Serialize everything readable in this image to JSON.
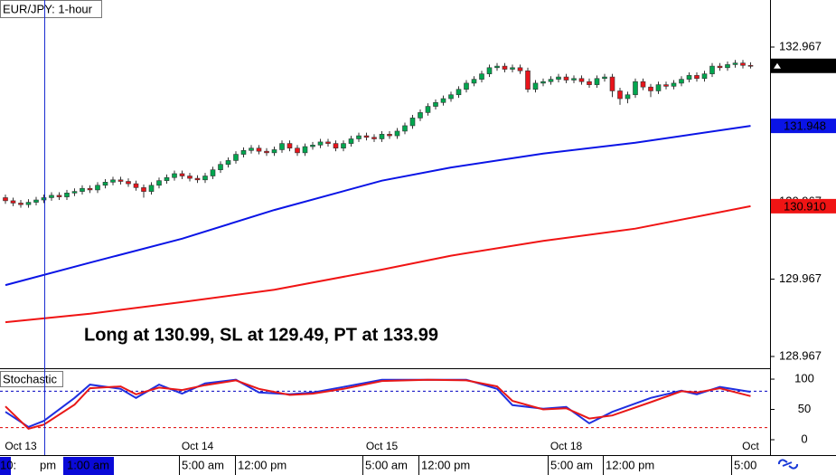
{
  "chart_data": [
    {
      "type": "candlestick",
      "title": "EUR/JPY: 1-hour",
      "annotation": "Long at 130.99, SL at 129.49, PT at 133.99",
      "categories": [
        null,
        null,
        "Oct 13",
        null,
        null,
        null,
        null,
        null,
        null,
        null,
        null,
        null,
        null,
        null,
        null,
        null,
        null,
        null,
        null,
        null,
        null,
        null,
        null,
        null,
        null,
        "Oct 14",
        null,
        null,
        null,
        null,
        null,
        null,
        null,
        null,
        null,
        null,
        null,
        null,
        null,
        null,
        null,
        null,
        null,
        null,
        null,
        null,
        null,
        null,
        null,
        "Oct 15",
        null,
        null,
        null,
        null,
        null,
        null,
        null,
        null,
        null,
        null,
        null,
        null,
        null,
        null,
        null,
        null,
        null,
        null,
        null,
        null,
        null,
        null,
        null,
        "Oct 18",
        null,
        null,
        null,
        null,
        null,
        null,
        null,
        null,
        null,
        null,
        null,
        null,
        null,
        null,
        null,
        null,
        null,
        null,
        null,
        null,
        null,
        null,
        null,
        "Oct"
      ],
      "open": [
        131.02,
        130.98,
        130.95,
        130.93,
        130.96,
        130.99,
        131.02,
        131.05,
        131.03,
        131.08,
        131.1,
        131.14,
        131.12,
        131.18,
        131.22,
        131.25,
        131.23,
        131.2,
        131.15,
        131.1,
        131.18,
        131.24,
        131.28,
        131.33,
        131.3,
        131.27,
        131.25,
        131.3,
        131.38,
        131.45,
        131.5,
        131.58,
        131.63,
        131.66,
        131.62,
        131.6,
        131.64,
        131.72,
        131.66,
        131.6,
        131.68,
        131.7,
        131.74,
        131.72,
        131.66,
        131.72,
        131.78,
        131.82,
        131.8,
        131.78,
        131.84,
        131.82,
        131.88,
        131.95,
        132.05,
        132.12,
        132.2,
        132.25,
        132.3,
        132.35,
        132.42,
        132.5,
        132.55,
        132.62,
        132.7,
        132.72,
        132.68,
        132.7,
        132.66,
        132.42,
        132.5,
        132.52,
        132.55,
        132.58,
        132.54,
        132.56,
        132.52,
        132.48,
        132.56,
        132.58,
        132.4,
        132.3,
        132.35,
        132.52,
        132.45,
        132.4,
        132.48,
        132.46,
        132.5,
        132.55,
        132.6,
        132.56,
        132.62,
        132.72,
        132.7,
        132.74,
        132.76,
        132.73
      ],
      "high": [
        131.06,
        131.02,
        130.99,
        131.0,
        131.03,
        131.06,
        131.09,
        131.09,
        131.12,
        131.14,
        131.18,
        131.18,
        131.22,
        131.26,
        131.29,
        131.29,
        131.27,
        131.24,
        131.19,
        131.22,
        131.28,
        131.32,
        131.37,
        131.37,
        131.34,
        131.31,
        131.34,
        131.42,
        131.49,
        131.54,
        131.62,
        131.67,
        131.7,
        131.7,
        131.66,
        131.68,
        131.76,
        131.76,
        131.7,
        131.72,
        131.74,
        131.78,
        131.78,
        131.76,
        131.76,
        131.82,
        131.86,
        131.86,
        131.84,
        131.88,
        131.88,
        131.92,
        131.99,
        132.09,
        132.16,
        132.24,
        132.29,
        132.34,
        132.39,
        132.46,
        132.54,
        132.59,
        132.66,
        132.74,
        132.76,
        132.76,
        132.74,
        132.74,
        132.7,
        132.54,
        132.56,
        132.59,
        132.62,
        132.62,
        132.6,
        132.6,
        132.56,
        132.6,
        132.62,
        132.62,
        132.44,
        132.39,
        132.56,
        132.56,
        132.49,
        132.52,
        132.52,
        132.54,
        132.59,
        132.64,
        132.64,
        132.66,
        132.76,
        132.76,
        132.78,
        132.8,
        132.8,
        132.77
      ],
      "low": [
        130.94,
        130.91,
        130.89,
        130.89,
        130.92,
        130.95,
        130.98,
        130.99,
        130.99,
        131.04,
        131.06,
        131.08,
        131.08,
        131.14,
        131.18,
        131.19,
        131.16,
        131.11,
        131.02,
        131.06,
        131.14,
        131.2,
        131.24,
        131.26,
        131.23,
        131.21,
        131.21,
        131.26,
        131.34,
        131.41,
        131.46,
        131.54,
        131.59,
        131.58,
        131.56,
        131.56,
        131.6,
        131.62,
        131.56,
        131.56,
        131.64,
        131.66,
        131.68,
        131.62,
        131.62,
        131.68,
        131.74,
        131.76,
        131.74,
        131.74,
        131.78,
        131.78,
        131.84,
        131.91,
        132.01,
        132.08,
        132.16,
        132.21,
        132.26,
        132.31,
        132.38,
        132.46,
        132.51,
        132.58,
        132.66,
        132.64,
        132.64,
        132.62,
        132.38,
        132.38,
        132.46,
        132.48,
        132.51,
        132.5,
        132.5,
        132.48,
        132.44,
        132.44,
        132.52,
        132.32,
        132.22,
        132.24,
        132.31,
        132.41,
        132.32,
        132.36,
        132.42,
        132.42,
        132.46,
        132.51,
        132.52,
        132.52,
        132.58,
        132.66,
        132.66,
        132.7,
        132.69,
        132.69
      ],
      "close": [
        130.98,
        130.95,
        130.93,
        130.96,
        130.99,
        131.02,
        131.05,
        131.03,
        131.08,
        131.1,
        131.14,
        131.12,
        131.18,
        131.22,
        131.25,
        131.23,
        131.2,
        131.15,
        131.1,
        131.18,
        131.24,
        131.28,
        131.33,
        131.3,
        131.27,
        131.25,
        131.3,
        131.38,
        131.45,
        131.5,
        131.58,
        131.63,
        131.66,
        131.62,
        131.6,
        131.64,
        131.72,
        131.66,
        131.6,
        131.68,
        131.7,
        131.74,
        131.72,
        131.66,
        131.72,
        131.78,
        131.82,
        131.8,
        131.78,
        131.84,
        131.82,
        131.88,
        131.95,
        132.05,
        132.12,
        132.2,
        132.25,
        132.3,
        132.35,
        132.42,
        132.5,
        132.55,
        132.62,
        132.7,
        132.72,
        132.68,
        132.7,
        132.66,
        132.42,
        132.5,
        132.52,
        132.55,
        132.58,
        132.54,
        132.56,
        132.52,
        132.48,
        132.56,
        132.58,
        132.4,
        132.3,
        132.35,
        132.52,
        132.45,
        132.4,
        132.48,
        132.46,
        132.5,
        132.55,
        132.6,
        132.56,
        132.62,
        132.72,
        132.7,
        132.74,
        132.76,
        132.73,
        132.724
      ],
      "up_color": "#00a64f",
      "down_color": "#e8141b",
      "last_color": "#000000",
      "xlim": [
        -0.706,
        99.53
      ],
      "ylim": [
        128.815,
        133.575
      ],
      "yticks": [
        128.967,
        129.967,
        130.967,
        131.967,
        132.967
      ],
      "series": [
        {
          "color": "#0a14e6",
          "x": [
            0,
            11,
            23,
            35,
            49,
            58,
            70,
            82,
            97
          ],
          "values": [
            129.89,
            130.18,
            130.49,
            130.86,
            131.24,
            131.41,
            131.59,
            131.73,
            131.948
          ]
        },
        {
          "color": "#f01414",
          "x": [
            0,
            11,
            23,
            35,
            49,
            58,
            70,
            82,
            97
          ],
          "values": [
            129.41,
            129.52,
            129.67,
            129.83,
            130.09,
            130.27,
            130.46,
            130.62,
            130.91
          ],
          "value_labels": [
            null,
            null,
            null,
            null,
            null,
            null,
            null,
            null,
            "130.910"
          ]
        }
      ]
    },
    {
      "type": "line",
      "title": "Stochastic",
      "xlim": [
        -0.706,
        99.53
      ],
      "ylim": [
        -1.5,
        115
      ],
      "yticks": [
        0,
        50,
        100
      ],
      "levels": [
        20,
        80
      ],
      "level_colors": [
        "#e00000",
        "#0000c0"
      ],
      "series": [
        {
          "color": "#1f2fe0",
          "x": [
            0,
            3,
            5,
            9,
            11,
            15,
            17,
            20,
            23,
            26,
            30,
            33,
            37,
            40,
            44,
            49,
            55,
            60,
            64,
            66,
            70,
            73,
            76,
            79,
            84,
            88,
            90,
            93,
            97
          ],
          "values": [
            46,
            21,
            31,
            69,
            91,
            84,
            69,
            91,
            76,
            93,
            99,
            78,
            75,
            78,
            87,
            99,
            99,
            99,
            84,
            57,
            51,
            54,
            27,
            46,
            69,
            81,
            75,
            87,
            79
          ]
        },
        {
          "color": "#e81818",
          "x": [
            0,
            3,
            5,
            9,
            11,
            15,
            17,
            20,
            23,
            26,
            30,
            33,
            37,
            40,
            44,
            49,
            55,
            60,
            64,
            66,
            70,
            73,
            76,
            79,
            84,
            88,
            90,
            93,
            97
          ],
          "values": [
            55,
            18,
            25,
            58,
            85,
            88,
            75,
            86,
            82,
            90,
            98,
            84,
            74,
            76,
            84,
            97,
            99,
            98,
            88,
            64,
            50,
            52,
            35,
            40,
            62,
            80,
            78,
            85,
            72
          ]
        }
      ]
    }
  ],
  "time_axis": [
    "10:",
    "pm",
    "1:00 am",
    "5:00 am",
    "12:00 pm",
    "5:00 am",
    "12:00 pm",
    "5:00 am",
    "12:00 pm",
    "5:00"
  ]
}
